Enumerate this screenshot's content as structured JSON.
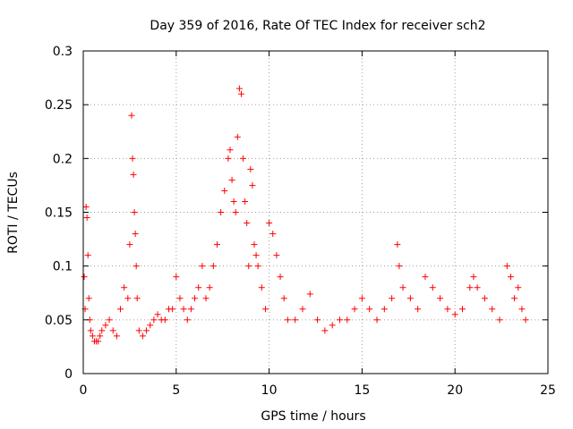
{
  "chart_data": {
    "type": "scatter",
    "title": "Day 359 of 2016, Rate Of TEC Index for receiver sch2",
    "xlabel": "GPS time / hours",
    "ylabel": "ROTI / TECUs",
    "xlim": [
      0,
      25
    ],
    "ylim": [
      0,
      0.3
    ],
    "x_ticks": [
      0,
      5,
      10,
      15,
      20,
      25
    ],
    "x_tick_labels": [
      "0",
      "5",
      "10",
      "15",
      "20",
      "25"
    ],
    "y_ticks": [
      0,
      0.05,
      0.1,
      0.15,
      0.2,
      0.25,
      0.3
    ],
    "y_tick_labels": [
      "0",
      "0.05",
      "0.1",
      "0.15",
      "0.2",
      "0.25",
      "0.3"
    ],
    "grid": true,
    "marker": "+",
    "color": "#ff0000",
    "series": [
      {
        "x": [
          0.05,
          0.1,
          0.15,
          0.2,
          0.25,
          0.3,
          0.35,
          0.4,
          0.5,
          0.6,
          0.7,
          0.8,
          0.9,
          1.0,
          1.2,
          1.4,
          1.6,
          1.8,
          2.0,
          2.2,
          2.4,
          2.5,
          2.6,
          2.65,
          2.7,
          2.75,
          2.8,
          2.85,
          2.9,
          3.0,
          3.2,
          3.4,
          3.6,
          3.8,
          4.0,
          4.2,
          4.4,
          4.6,
          4.8,
          5.0,
          5.2,
          5.4,
          5.6,
          5.8,
          6.0,
          6.2,
          6.4,
          6.6,
          6.8,
          7.0,
          7.2,
          7.4,
          7.6,
          7.8,
          7.9,
          8.0,
          8.1,
          8.2,
          8.3,
          8.4,
          8.5,
          8.6,
          8.7,
          8.8,
          8.9,
          9.0,
          9.1,
          9.2,
          9.3,
          9.4,
          9.6,
          9.8,
          10.0,
          10.2,
          10.4,
          10.6,
          10.8,
          11.0,
          11.4,
          11.8,
          12.2,
          12.6,
          13.0,
          13.4,
          13.8,
          14.2,
          14.6,
          15.0,
          15.4,
          15.8,
          16.2,
          16.6,
          16.9,
          17.0,
          17.2,
          17.6,
          18.0,
          18.4,
          18.8,
          19.2,
          19.6,
          20.0,
          20.4,
          20.8,
          21.0,
          21.2,
          21.6,
          22.0,
          22.4,
          22.8,
          23.0,
          23.2,
          23.4,
          23.6,
          23.8
        ],
        "y": [
          0.09,
          0.06,
          0.155,
          0.145,
          0.11,
          0.07,
          0.05,
          0.04,
          0.035,
          0.03,
          0.03,
          0.03,
          0.035,
          0.04,
          0.045,
          0.05,
          0.04,
          0.035,
          0.06,
          0.08,
          0.07,
          0.12,
          0.24,
          0.2,
          0.185,
          0.15,
          0.13,
          0.1,
          0.07,
          0.04,
          0.035,
          0.04,
          0.045,
          0.05,
          0.055,
          0.05,
          0.05,
          0.06,
          0.06,
          0.09,
          0.07,
          0.06,
          0.05,
          0.06,
          0.07,
          0.08,
          0.1,
          0.07,
          0.08,
          0.1,
          0.12,
          0.15,
          0.17,
          0.2,
          0.208,
          0.18,
          0.16,
          0.15,
          0.22,
          0.265,
          0.26,
          0.2,
          0.16,
          0.14,
          0.1,
          0.19,
          0.175,
          0.12,
          0.11,
          0.1,
          0.08,
          0.06,
          0.14,
          0.13,
          0.11,
          0.09,
          0.07,
          0.05,
          0.05,
          0.06,
          0.074,
          0.05,
          0.04,
          0.045,
          0.05,
          0.05,
          0.06,
          0.07,
          0.06,
          0.05,
          0.06,
          0.07,
          0.12,
          0.1,
          0.08,
          0.07,
          0.06,
          0.09,
          0.08,
          0.07,
          0.06,
          0.055,
          0.06,
          0.08,
          0.09,
          0.08,
          0.07,
          0.06,
          0.05,
          0.1,
          0.09,
          0.07,
          0.08,
          0.06,
          0.05
        ]
      }
    ]
  }
}
